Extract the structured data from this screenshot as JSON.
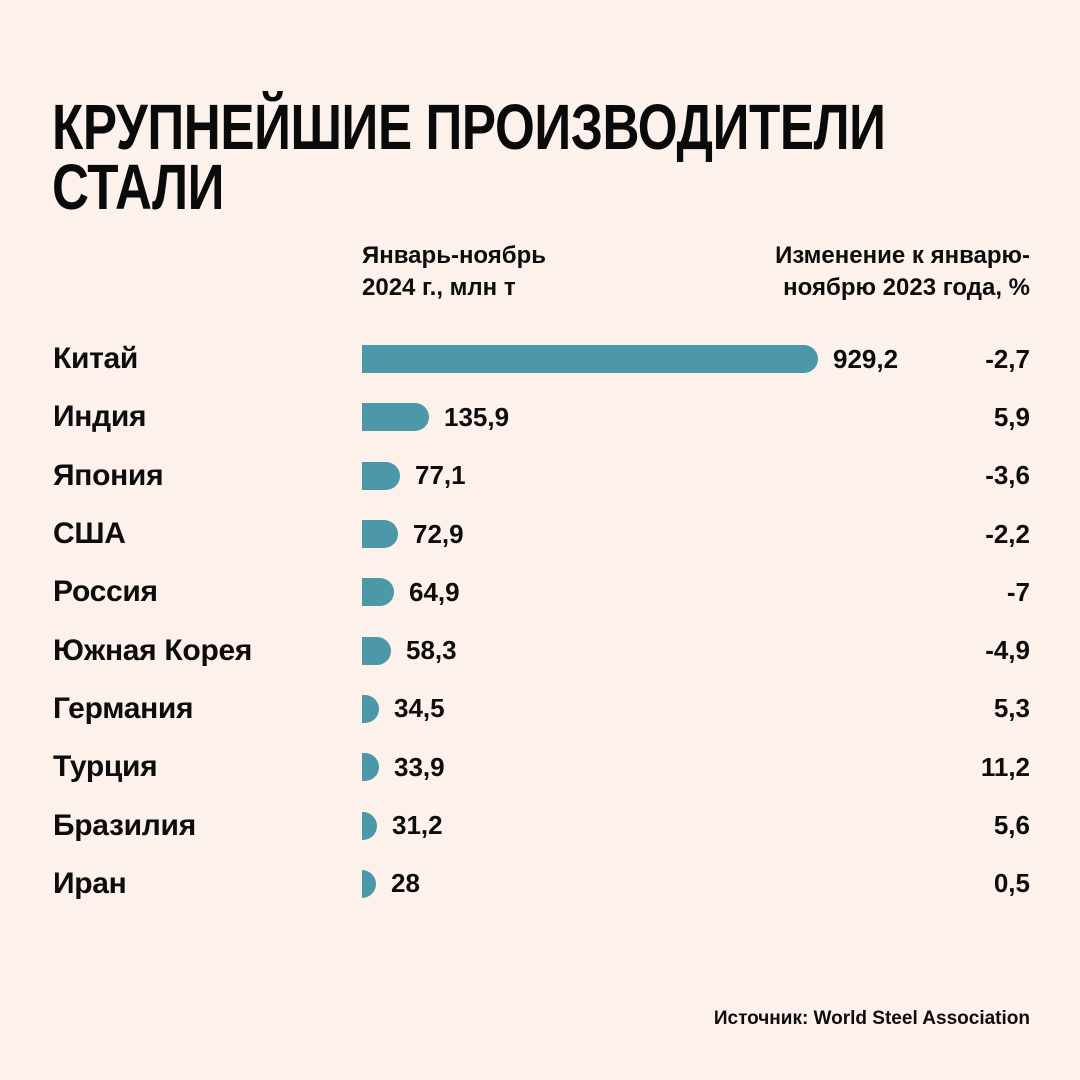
{
  "header": {
    "title_line1": "КРУПНЕЙШИЕ ПРОИЗВОДИТЕЛИ",
    "title_line2": "СТАЛИ"
  },
  "columns": {
    "value_header_line1": "Январь-ноябрь",
    "value_header_line2": "2024 г., млн т",
    "change_header_line1": "Изменение к январю-",
    "change_header_line2": "ноябрю 2023 года, %"
  },
  "footer": {
    "source": "Источник: World Steel Association"
  },
  "colors": {
    "background": "#fdf1ec",
    "bar": "#4c97a8",
    "text": "#0d0d0d"
  },
  "chart_data": {
    "type": "bar",
    "orientation": "horizontal",
    "title": "КРУПНЕЙШИЕ ПРОИЗВОДИТЕЛИ СТАЛИ",
    "value_column_label": "Январь-ноябрь 2024 г., млн т",
    "change_column_label": "Изменение к январю-ноябрю 2023 года, %",
    "max_value": 929.2,
    "legend_position": "none",
    "grid": false,
    "rows": [
      {
        "country": "Китай",
        "value": 929.2,
        "value_label": "929,2",
        "change": -2.7,
        "change_label": "-2,7"
      },
      {
        "country": "Индия",
        "value": 135.9,
        "value_label": "135,9",
        "change": 5.9,
        "change_label": "5,9"
      },
      {
        "country": "Япония",
        "value": 77.1,
        "value_label": "77,1",
        "change": -3.6,
        "change_label": "-3,6"
      },
      {
        "country": "США",
        "value": 72.9,
        "value_label": "72,9",
        "change": -2.2,
        "change_label": "-2,2"
      },
      {
        "country": "Россия",
        "value": 64.9,
        "value_label": "64,9",
        "change": -7,
        "change_label": "-7"
      },
      {
        "country": "Южная Корея",
        "value": 58.3,
        "value_label": "58,3",
        "change": -4.9,
        "change_label": "-4,9"
      },
      {
        "country": "Германия",
        "value": 34.5,
        "value_label": "34,5",
        "change": 5.3,
        "change_label": "5,3"
      },
      {
        "country": "Турция",
        "value": 33.9,
        "value_label": "33,9",
        "change": 11.2,
        "change_label": "11,2"
      },
      {
        "country": "Бразилия",
        "value": 31.2,
        "value_label": "31,2",
        "change": 5.6,
        "change_label": "5,6"
      },
      {
        "country": "Иран",
        "value": 28,
        "value_label": "28",
        "change": 0.5,
        "change_label": "0,5"
      }
    ],
    "source": "Источник: World Steel Association"
  }
}
